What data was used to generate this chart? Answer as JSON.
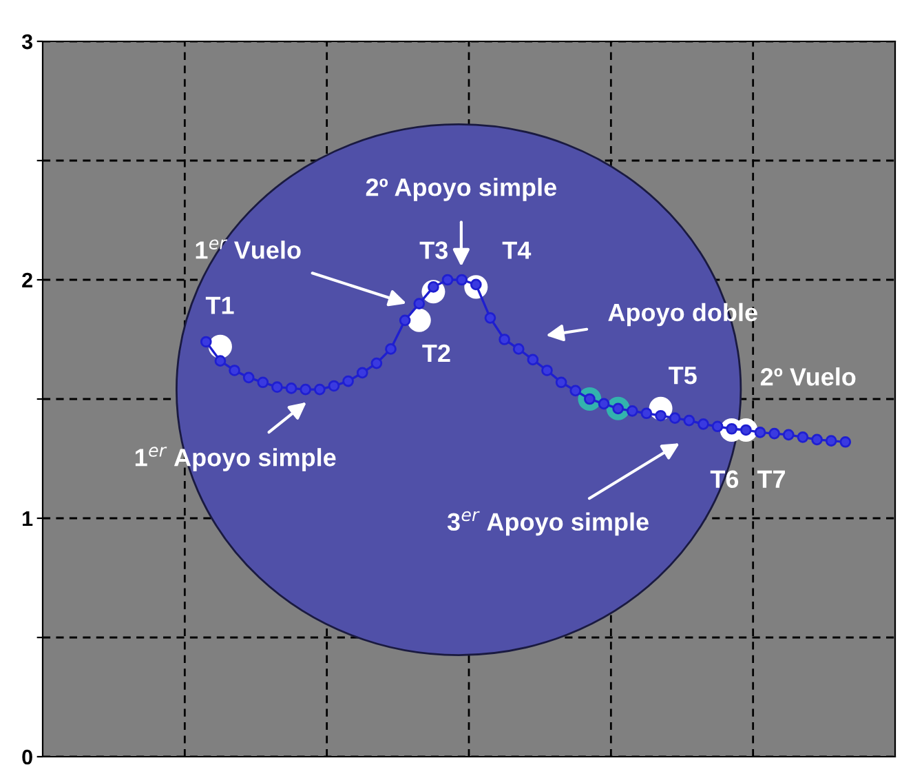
{
  "chart_data": {
    "type": "line",
    "marker": "circle",
    "grid": true,
    "tick_labels": "y",
    "categories": [
      null,
      null,
      null,
      null,
      null,
      null,
      null,
      null,
      null,
      null,
      null,
      null,
      null,
      null,
      null,
      null,
      null,
      null,
      null,
      null,
      null,
      null,
      null,
      null,
      null,
      null,
      null,
      null,
      null,
      null,
      null,
      null,
      null,
      null,
      null,
      null,
      null,
      null,
      null,
      null,
      null,
      null,
      null,
      null,
      null,
      null,
      null,
      null,
      null,
      null,
      null,
      null,
      null,
      null,
      null,
      null,
      null,
      null,
      null,
      null
    ],
    "ylim": [
      0,
      3
    ],
    "yticks": [
      0,
      {
        "value": 0.5,
        "label": null
      },
      1,
      {
        "value": 1.5,
        "label": null
      },
      2,
      {
        "value": 2.5,
        "label": null
      },
      3
    ],
    "series": [
      {
        "color": "#1f1fd0",
        "values": [
          null,
          null,
          null,
          null,
          null,
          null,
          null,
          null,
          null,
          null,
          null,
          1.74,
          1.66,
          1.62,
          1.59,
          1.57,
          1.55,
          1.545,
          1.54,
          1.54,
          1.555,
          1.575,
          1.61,
          1.65,
          1.71,
          1.83,
          1.9,
          1.97,
          2.0,
          2.0,
          1.98,
          1.84,
          1.75,
          1.71,
          1.665,
          1.62,
          1.57,
          1.535,
          1.5,
          1.48,
          1.46,
          1.45,
          1.44,
          1.43,
          1.42,
          1.41,
          1.395,
          1.385,
          1.375,
          1.37,
          1.36,
          1.355,
          1.35,
          1.34,
          1.33,
          1.325,
          1.32,
          null,
          null,
          null
        ]
      },
      {
        "type": "scatter",
        "color": "#ffffff",
        "values": [
          null,
          null,
          null,
          null,
          null,
          null,
          null,
          null,
          null,
          null,
          null,
          null,
          1.72,
          null,
          null,
          null,
          null,
          null,
          null,
          null,
          null,
          null,
          null,
          null,
          null,
          null,
          1.83,
          1.95,
          null,
          null,
          1.97,
          null,
          null,
          null,
          null,
          null,
          null,
          null,
          null,
          null,
          null,
          null,
          null,
          1.46,
          null,
          null,
          null,
          null,
          1.37,
          1.37,
          null,
          null,
          null,
          null,
          null,
          null,
          null,
          null,
          null,
          null
        ]
      },
      {
        "type": "scatter",
        "color": "#33b3ad",
        "values": [
          null,
          null,
          null,
          null,
          null,
          null,
          null,
          null,
          null,
          null,
          null,
          null,
          null,
          null,
          null,
          null,
          null,
          null,
          null,
          null,
          null,
          null,
          null,
          null,
          null,
          null,
          null,
          null,
          null,
          null,
          null,
          null,
          null,
          null,
          null,
          null,
          null,
          null,
          1.5,
          null,
          1.46,
          null,
          null,
          null,
          null,
          null,
          null,
          null,
          null,
          null,
          null,
          null,
          null,
          null,
          null,
          null,
          null,
          null,
          null,
          null
        ]
      }
    ],
    "annotations": [
      "T1",
      "T2",
      "T3",
      "T4",
      "T5",
      "T6",
      "T7",
      "2º Vuelo",
      "1$^{er}$ Vuelo",
      "2º Apoyo simple",
      "Apoyo doble",
      "1$^{er}$ Apoyo simple",
      "3$^{er}$ Apoyo simple"
    ]
  }
}
